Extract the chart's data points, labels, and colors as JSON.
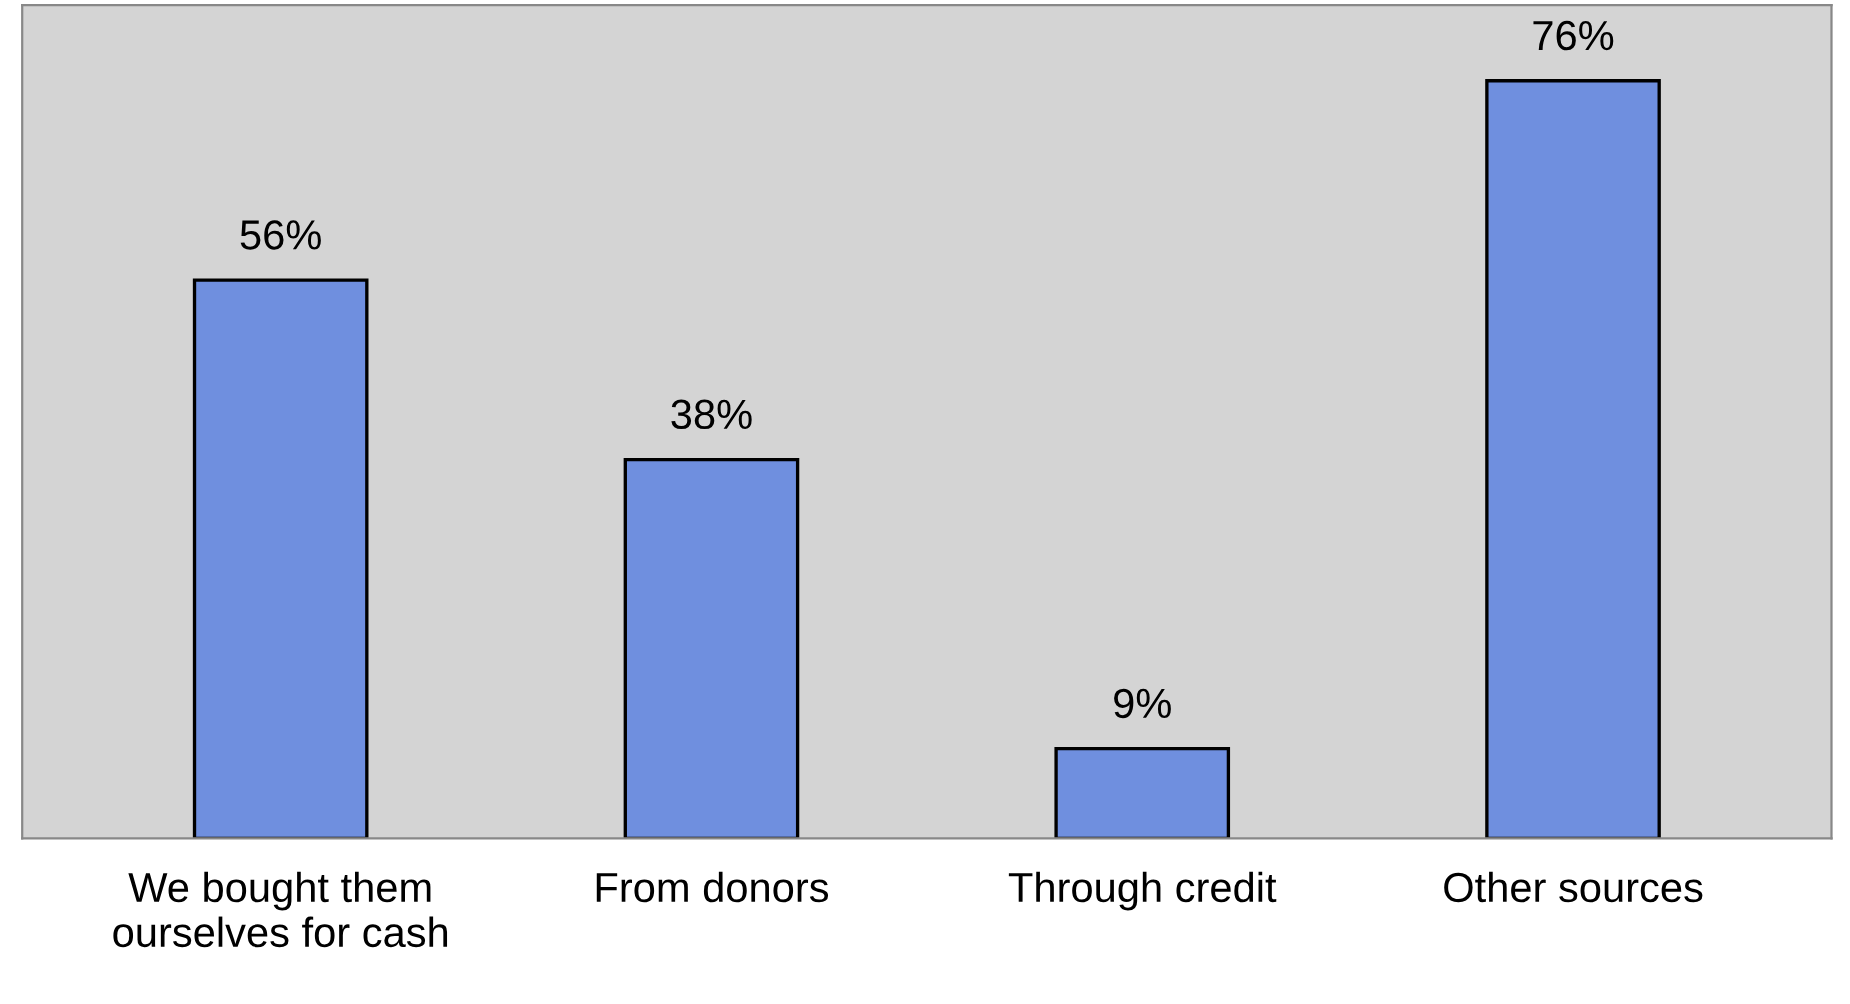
{
  "chart_data": {
    "type": "bar",
    "categories": [
      "We bought them\nourselves for cash",
      "From donors",
      "Through credit",
      "Other sources"
    ],
    "values": [
      56,
      38,
      9,
      76
    ],
    "color": "#6f8fdf",
    "value_labels": [
      "56%",
      "38%",
      "9%",
      "76%"
    ],
    "grid": false,
    "legend": false
  }
}
